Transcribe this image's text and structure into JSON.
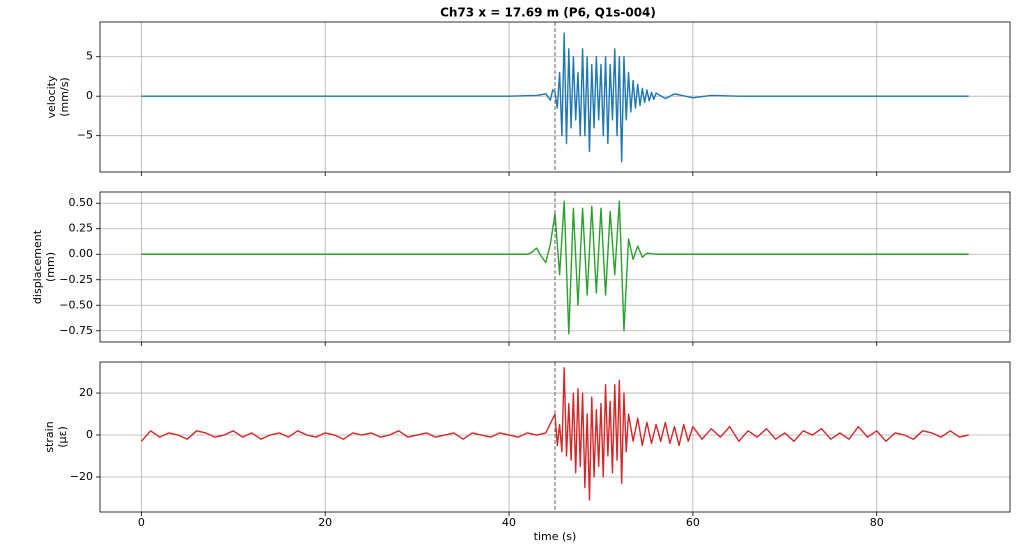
{
  "title": "Ch73  x = 17.69 m   (P6, Q1s-004)",
  "chart_data": [
    {
      "type": "line",
      "ylabel": [
        "velocity",
        "(mm/s)"
      ],
      "color": "#1f77b4",
      "grid": true,
      "vline": 45,
      "xlim": [
        -4.5,
        94.5
      ],
      "xticks": [
        0,
        20,
        40,
        60,
        80
      ],
      "ylim": [
        -9.6,
        9.4
      ],
      "yticks": [
        {
          "value": -5,
          "label": "−5"
        },
        0,
        5
      ],
      "x": [
        0,
        10,
        20,
        30,
        40,
        43,
        44,
        44.5,
        44.75,
        45,
        45.25,
        45.5,
        45.75,
        46,
        46.25,
        46.5,
        46.75,
        47,
        47.25,
        47.5,
        47.75,
        48,
        48.25,
        48.5,
        48.75,
        49,
        49.25,
        49.5,
        49.75,
        50,
        50.25,
        50.5,
        50.75,
        51,
        51.25,
        51.5,
        51.75,
        52,
        52.25,
        52.5,
        52.75,
        53,
        53.25,
        53.5,
        53.75,
        54,
        54.25,
        54.5,
        54.75,
        55,
        55.25,
        55.5,
        55.75,
        56,
        57,
        58,
        60,
        62,
        65,
        70,
        80,
        90
      ],
      "values": [
        0,
        0,
        0,
        0,
        0,
        0.1,
        0.3,
        -0.5,
        0.8,
        0.5,
        -1.5,
        3,
        -5,
        8,
        -6,
        6,
        -4,
        5,
        -3,
        3,
        -5,
        6,
        -5,
        5,
        -7,
        4,
        -4,
        5,
        -3,
        4,
        -5,
        5,
        -6,
        4,
        -3,
        6,
        -5,
        5,
        -8.3,
        5,
        -3,
        3,
        -2,
        2,
        -1.5,
        1.5,
        -1.2,
        1,
        -0.8,
        0.8,
        -0.6,
        0.5,
        -0.4,
        0.4,
        -0.3,
        0.3,
        -0.2,
        0.1,
        0,
        0,
        0,
        0
      ]
    },
    {
      "type": "line",
      "ylabel": [
        "displacement",
        "(mm)"
      ],
      "color": "#2ca02c",
      "grid": true,
      "vline": 45,
      "xlim": [
        -4.5,
        94.5
      ],
      "xticks": [
        0,
        20,
        40,
        60,
        80
      ],
      "ylim": [
        -0.86,
        0.61
      ],
      "yticks": [
        {
          "value": -0.75,
          "label": "−0.75"
        },
        {
          "value": -0.5,
          "label": "−0.50"
        },
        {
          "value": -0.25,
          "label": "−0.25"
        },
        {
          "value": 0,
          "label": "0.00"
        },
        {
          "value": 0.25,
          "label": "0.25"
        },
        {
          "value": 0.5,
          "label": "0.50"
        }
      ],
      "x": [
        0,
        10,
        20,
        30,
        40,
        42,
        42.5,
        43,
        43.5,
        44,
        44.5,
        45,
        45.5,
        46,
        46.5,
        47,
        47.5,
        48,
        48.5,
        49,
        49.5,
        50,
        50.5,
        51,
        51.5,
        52,
        52.5,
        53,
        53.5,
        54,
        54.5,
        55,
        56,
        60,
        70,
        80,
        90
      ],
      "values": [
        0,
        0,
        0,
        0,
        0,
        0,
        0.02,
        0.06,
        -0.02,
        -0.08,
        0.1,
        0.4,
        -0.2,
        0.52,
        -0.78,
        0.45,
        -0.5,
        0.45,
        -0.4,
        0.47,
        -0.38,
        0.45,
        -0.4,
        0.42,
        -0.2,
        0.52,
        -0.75,
        0.15,
        -0.05,
        0.08,
        -0.03,
        0.01,
        0,
        0,
        0,
        0,
        0
      ]
    },
    {
      "type": "line",
      "ylabel": [
        "strain",
        "(με)"
      ],
      "xlabel": "time (s)",
      "color": "#d62728",
      "grid": true,
      "vline": 45,
      "xlim": [
        -4.5,
        94.5
      ],
      "xticks": [
        0,
        20,
        40,
        60,
        80
      ],
      "ylim": [
        -36.7,
        34.8
      ],
      "yticks": [
        {
          "value": -20,
          "label": "−20"
        },
        0,
        20
      ],
      "x": [
        0,
        1,
        2,
        3,
        4,
        5,
        6,
        7,
        8,
        9,
        10,
        11,
        12,
        13,
        14,
        15,
        16,
        17,
        18,
        19,
        20,
        21,
        22,
        23,
        24,
        25,
        26,
        27,
        28,
        29,
        30,
        31,
        32,
        33,
        34,
        35,
        36,
        37,
        38,
        39,
        40,
        41,
        42,
        43,
        44,
        45,
        45.25,
        45.5,
        45.75,
        46,
        46.25,
        46.5,
        46.75,
        47,
        47.25,
        47.5,
        47.75,
        48,
        48.25,
        48.5,
        48.75,
        49,
        49.25,
        49.5,
        49.75,
        50,
        50.25,
        50.5,
        50.75,
        51,
        51.25,
        51.5,
        51.75,
        52,
        52.25,
        52.5,
        52.75,
        53,
        53.5,
        54,
        54.5,
        55,
        55.5,
        56,
        56.5,
        57,
        57.5,
        58,
        58.5,
        59,
        59.5,
        60,
        61,
        62,
        63,
        64,
        65,
        66,
        67,
        68,
        69,
        70,
        71,
        72,
        73,
        74,
        75,
        76,
        77,
        78,
        79,
        80,
        81,
        82,
        83,
        84,
        85,
        86,
        87,
        88,
        89,
        90
      ],
      "values": [
        -3,
        2,
        -1,
        1,
        0,
        -2,
        2,
        1,
        -1,
        0,
        2,
        -1,
        1,
        -2,
        0,
        1,
        -1,
        2,
        0,
        -1,
        1,
        0,
        -2,
        1,
        0,
        1,
        -1,
        0,
        2,
        -1,
        0,
        1,
        -1,
        0,
        1,
        -2,
        1,
        0,
        -1,
        1,
        0,
        -1,
        1,
        0,
        1,
        10,
        -5,
        5,
        -8,
        32,
        -10,
        15,
        -12,
        20,
        -18,
        22,
        -15,
        20,
        -25,
        10,
        -31,
        18,
        -20,
        12,
        -15,
        15,
        -20,
        24,
        -10,
        16,
        -18,
        24,
        -12,
        26,
        -23,
        20,
        -8,
        10,
        -3,
        8,
        -5,
        6,
        -4,
        5,
        -3,
        6,
        -4,
        4,
        -5,
        5,
        -3,
        4,
        -2,
        3,
        -1,
        4,
        -3,
        2,
        -1,
        3,
        -2,
        1,
        -3,
        2,
        0,
        3,
        -2,
        1,
        -2,
        4,
        -1,
        2,
        -3,
        1,
        0,
        -2,
        2,
        1,
        -1,
        2,
        -1,
        0
      ]
    }
  ]
}
